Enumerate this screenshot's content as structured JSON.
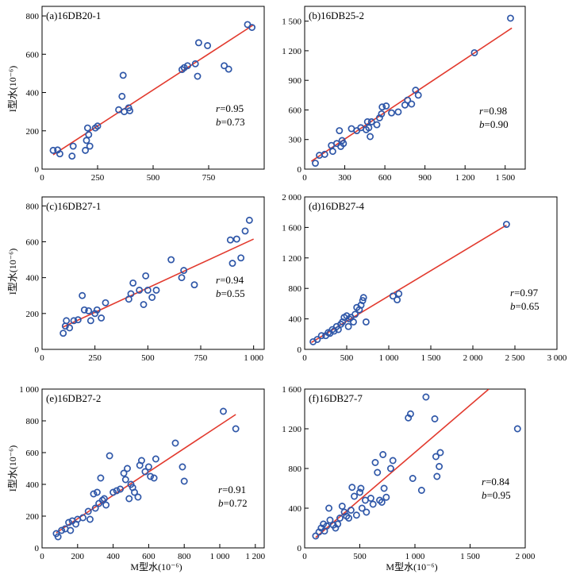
{
  "x_axis_label": "M型水(10⁻⁶)",
  "y_axis_label": "I型水(10⁻⁶)",
  "colors": {
    "points": "#2f57a8",
    "fit_line": "#e23a2e",
    "frame": "#000000"
  },
  "chart_data": [
    {
      "type": "scatter",
      "title": "(a)16DB20-1",
      "r_label": "r",
      "r_value": "=0.95",
      "b_label": "b",
      "b_value": "=0.73",
      "xlim": [
        0,
        1000
      ],
      "ylim": [
        0,
        850
      ],
      "xticks": [
        0,
        250,
        500,
        750
      ],
      "xtick_labels": [
        "0",
        "250",
        "500",
        "750"
      ],
      "yticks": [
        0,
        200,
        400,
        600,
        800
      ],
      "ytick_labels": [
        "0",
        "200",
        "400",
        "600",
        "800"
      ],
      "fit": {
        "x1": 50,
        "y1": 75,
        "x2": 950,
        "y2": 752
      },
      "points": [
        [
          50,
          98
        ],
        [
          70,
          100
        ],
        [
          80,
          80
        ],
        [
          135,
          68
        ],
        [
          140,
          120
        ],
        [
          195,
          98
        ],
        [
          200,
          150
        ],
        [
          205,
          215
        ],
        [
          210,
          180
        ],
        [
          215,
          120
        ],
        [
          240,
          215
        ],
        [
          250,
          225
        ],
        [
          345,
          310
        ],
        [
          360,
          380
        ],
        [
          365,
          490
        ],
        [
          370,
          300
        ],
        [
          390,
          320
        ],
        [
          395,
          305
        ],
        [
          630,
          520
        ],
        [
          640,
          530
        ],
        [
          655,
          540
        ],
        [
          690,
          550
        ],
        [
          700,
          485
        ],
        [
          705,
          660
        ],
        [
          745,
          645
        ],
        [
          820,
          540
        ],
        [
          840,
          522
        ],
        [
          925,
          755
        ],
        [
          945,
          740
        ]
      ],
      "x_axis_label": "",
      "y_axis_label": "I型水(10⁻⁶)"
    },
    {
      "type": "scatter",
      "title": "(b)16DB25-2",
      "r_label": "r",
      "r_value": "=0.98",
      "b_label": "b",
      "b_value": "=0.90",
      "xlim": [
        0,
        1650
      ],
      "ylim": [
        0,
        1650
      ],
      "xticks": [
        0,
        300,
        600,
        900,
        1200,
        1500
      ],
      "xtick_labels": [
        "0",
        "300",
        "600",
        "900",
        "1 200",
        "1 500"
      ],
      "yticks": [
        0,
        300,
        600,
        900,
        1200,
        1500
      ],
      "ytick_labels": [
        "0",
        "300",
        "600",
        "900",
        "1 200",
        "1 500"
      ],
      "fit": {
        "x1": 50,
        "y1": 80,
        "x2": 1550,
        "y2": 1430
      },
      "points": [
        [
          80,
          60
        ],
        [
          110,
          140
        ],
        [
          150,
          150
        ],
        [
          200,
          240
        ],
        [
          210,
          180
        ],
        [
          240,
          260
        ],
        [
          260,
          390
        ],
        [
          270,
          230
        ],
        [
          280,
          290
        ],
        [
          290,
          260
        ],
        [
          350,
          410
        ],
        [
          390,
          390
        ],
        [
          420,
          420
        ],
        [
          460,
          400
        ],
        [
          470,
          480
        ],
        [
          480,
          420
        ],
        [
          490,
          330
        ],
        [
          500,
          480
        ],
        [
          540,
          450
        ],
        [
          560,
          520
        ],
        [
          575,
          560
        ],
        [
          580,
          630
        ],
        [
          610,
          640
        ],
        [
          650,
          570
        ],
        [
          700,
          580
        ],
        [
          750,
          650
        ],
        [
          770,
          700
        ],
        [
          800,
          660
        ],
        [
          830,
          800
        ],
        [
          850,
          750
        ],
        [
          1270,
          1180
        ],
        [
          1540,
          1530
        ]
      ],
      "x_axis_label": "",
      "y_axis_label": ""
    },
    {
      "type": "scatter",
      "title": "(c)16DB27-1",
      "r_label": "r",
      "r_value": "=0.94",
      "b_label": "b",
      "b_value": "=0.55",
      "xlim": [
        0,
        1050
      ],
      "ylim": [
        0,
        850
      ],
      "xticks": [
        0,
        250,
        500,
        750,
        1000
      ],
      "xtick_labels": [
        "0",
        "250",
        "500",
        "750",
        "1 000"
      ],
      "yticks": [
        0,
        200,
        400,
        600,
        800
      ],
      "ytick_labels": [
        "0",
        "200",
        "400",
        "600",
        "800"
      ],
      "fit": {
        "x1": 100,
        "y1": 125,
        "x2": 1000,
        "y2": 615
      },
      "points": [
        [
          100,
          90
        ],
        [
          110,
          130
        ],
        [
          115,
          160
        ],
        [
          130,
          120
        ],
        [
          150,
          160
        ],
        [
          170,
          165
        ],
        [
          190,
          300
        ],
        [
          200,
          220
        ],
        [
          220,
          215
        ],
        [
          230,
          160
        ],
        [
          250,
          200
        ],
        [
          260,
          220
        ],
        [
          280,
          175
        ],
        [
          300,
          260
        ],
        [
          410,
          280
        ],
        [
          420,
          310
        ],
        [
          430,
          370
        ],
        [
          460,
          330
        ],
        [
          480,
          250
        ],
        [
          490,
          410
        ],
        [
          500,
          330
        ],
        [
          520,
          290
        ],
        [
          540,
          330
        ],
        [
          610,
          500
        ],
        [
          660,
          400
        ],
        [
          670,
          440
        ],
        [
          720,
          360
        ],
        [
          890,
          610
        ],
        [
          900,
          480
        ],
        [
          920,
          615
        ],
        [
          940,
          510
        ],
        [
          960,
          660
        ],
        [
          980,
          720
        ]
      ],
      "x_axis_label": "",
      "y_axis_label": "I型水(10⁻⁶)"
    },
    {
      "type": "scatter",
      "title": "(d)16DB27-4",
      "r_label": "r",
      "r_value": "=0.97",
      "b_label": "b",
      "b_value": "=0.65",
      "xlim": [
        0,
        3000
      ],
      "ylim": [
        0,
        2000
      ],
      "xticks": [
        0,
        500,
        1000,
        1500,
        2000,
        2500,
        3000
      ],
      "xtick_labels": [
        "0",
        "500",
        "1 000",
        "1 500",
        "2 000",
        "2 500",
        "3 000"
      ],
      "yticks": [
        0,
        400,
        800,
        1200,
        1600,
        2000
      ],
      "ytick_labels": [
        "0",
        "400",
        "800",
        "1 200",
        "1 600",
        "2 000"
      ],
      "fit": {
        "x1": 80,
        "y1": 90,
        "x2": 2400,
        "y2": 1630
      },
      "points": [
        [
          100,
          100
        ],
        [
          150,
          130
        ],
        [
          200,
          180
        ],
        [
          250,
          180
        ],
        [
          280,
          220
        ],
        [
          300,
          210
        ],
        [
          330,
          260
        ],
        [
          350,
          240
        ],
        [
          380,
          300
        ],
        [
          400,
          260
        ],
        [
          430,
          330
        ],
        [
          450,
          360
        ],
        [
          470,
          420
        ],
        [
          500,
          440
        ],
        [
          520,
          300
        ],
        [
          530,
          400
        ],
        [
          550,
          420
        ],
        [
          580,
          360
        ],
        [
          600,
          460
        ],
        [
          620,
          550
        ],
        [
          650,
          520
        ],
        [
          670,
          580
        ],
        [
          690,
          640
        ],
        [
          700,
          680
        ],
        [
          730,
          360
        ],
        [
          1050,
          700
        ],
        [
          1100,
          650
        ],
        [
          1120,
          730
        ],
        [
          2400,
          1640
        ]
      ],
      "x_axis_label": "",
      "y_axis_label": ""
    },
    {
      "type": "scatter",
      "title": "(e)16DB27-2",
      "r_label": "r",
      "r_value": "=0.91",
      "b_label": "b",
      "b_value": "=0.72",
      "xlim": [
        0,
        1250
      ],
      "ylim": [
        0,
        1000
      ],
      "xticks": [
        0,
        200,
        400,
        600,
        800,
        1000,
        1200
      ],
      "xtick_labels": [
        "0",
        "200",
        "400",
        "600",
        "800",
        "1 000",
        "1 200"
      ],
      "yticks": [
        0,
        200,
        400,
        600,
        800,
        1000
      ],
      "ytick_labels": [
        "0",
        "200",
        "400",
        "600",
        "800",
        "1 000"
      ],
      "fit": {
        "x1": 80,
        "y1": 95,
        "x2": 1090,
        "y2": 840
      },
      "points": [
        [
          80,
          90
        ],
        [
          90,
          70
        ],
        [
          110,
          110
        ],
        [
          130,
          120
        ],
        [
          150,
          160
        ],
        [
          160,
          110
        ],
        [
          170,
          170
        ],
        [
          190,
          150
        ],
        [
          200,
          180
        ],
        [
          230,
          190
        ],
        [
          260,
          230
        ],
        [
          270,
          180
        ],
        [
          290,
          340
        ],
        [
          300,
          250
        ],
        [
          310,
          350
        ],
        [
          320,
          280
        ],
        [
          330,
          440
        ],
        [
          340,
          300
        ],
        [
          350,
          310
        ],
        [
          360,
          270
        ],
        [
          380,
          580
        ],
        [
          400,
          350
        ],
        [
          420,
          360
        ],
        [
          440,
          370
        ],
        [
          460,
          470
        ],
        [
          470,
          430
        ],
        [
          480,
          500
        ],
        [
          490,
          310
        ],
        [
          500,
          400
        ],
        [
          510,
          380
        ],
        [
          520,
          350
        ],
        [
          540,
          320
        ],
        [
          550,
          520
        ],
        [
          560,
          550
        ],
        [
          580,
          480
        ],
        [
          600,
          510
        ],
        [
          610,
          450
        ],
        [
          630,
          440
        ],
        [
          640,
          560
        ],
        [
          750,
          660
        ],
        [
          790,
          510
        ],
        [
          800,
          420
        ],
        [
          1020,
          860
        ],
        [
          1090,
          750
        ]
      ],
      "x_axis_label": "M型水(10⁻⁶)",
      "y_axis_label": "I型水(10⁻⁶)"
    },
    {
      "type": "scatter",
      "title": "(f)16DB27-7",
      "r_label": "r",
      "r_value": "=0.84",
      "b_label": "b",
      "b_value": "=0.95",
      "xlim": [
        0,
        2000
      ],
      "ylim": [
        0,
        1600
      ],
      "xticks": [
        0,
        500,
        1000,
        1500,
        2000
      ],
      "xtick_labels": [
        "0",
        "500",
        "1 000",
        "1 500",
        "2 000"
      ],
      "yticks": [
        0,
        400,
        800,
        1200,
        1600
      ],
      "ytick_labels": [
        "0",
        "400",
        "800",
        "1 200",
        "1 600"
      ],
      "fit": {
        "x1": 100,
        "y1": 105,
        "x2": 1670,
        "y2": 1600
      },
      "points": [
        [
          100,
          120
        ],
        [
          130,
          160
        ],
        [
          150,
          200
        ],
        [
          170,
          240
        ],
        [
          180,
          170
        ],
        [
          200,
          220
        ],
        [
          220,
          400
        ],
        [
          230,
          280
        ],
        [
          260,
          230
        ],
        [
          280,
          200
        ],
        [
          300,
          240
        ],
        [
          320,
          300
        ],
        [
          340,
          420
        ],
        [
          360,
          360
        ],
        [
          380,
          320
        ],
        [
          400,
          300
        ],
        [
          420,
          380
        ],
        [
          430,
          610
        ],
        [
          450,
          520
        ],
        [
          470,
          330
        ],
        [
          500,
          560
        ],
        [
          510,
          600
        ],
        [
          520,
          400
        ],
        [
          550,
          480
        ],
        [
          560,
          360
        ],
        [
          600,
          500
        ],
        [
          620,
          440
        ],
        [
          640,
          860
        ],
        [
          660,
          760
        ],
        [
          680,
          480
        ],
        [
          700,
          460
        ],
        [
          710,
          940
        ],
        [
          720,
          600
        ],
        [
          740,
          510
        ],
        [
          780,
          800
        ],
        [
          800,
          880
        ],
        [
          940,
          1310
        ],
        [
          960,
          1350
        ],
        [
          980,
          700
        ],
        [
          1060,
          580
        ],
        [
          1100,
          1520
        ],
        [
          1180,
          1300
        ],
        [
          1190,
          920
        ],
        [
          1200,
          720
        ],
        [
          1220,
          820
        ],
        [
          1230,
          960
        ],
        [
          1930,
          1200
        ]
      ],
      "x_axis_label": "M型水(10⁻⁶)",
      "y_axis_label": ""
    }
  ]
}
